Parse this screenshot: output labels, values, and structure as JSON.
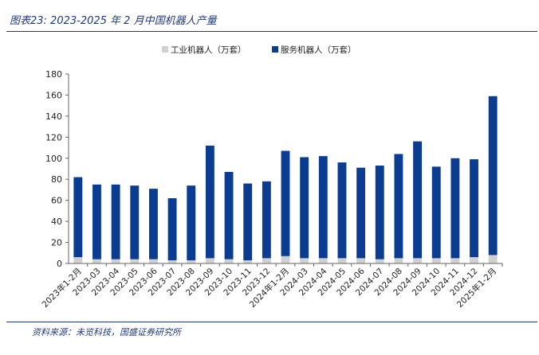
{
  "header": {
    "title": "图表23:  2023-2025 年 2 月中国机器人产量"
  },
  "footer": {
    "source": "资料来源：未览科技，国盛证券研究所"
  },
  "colors": {
    "industrial": "#d0d0d0",
    "service": "#0a3d91",
    "rule": "#1f3a7a"
  },
  "chart_data": {
    "type": "bar",
    "stacked": true,
    "categories": [
      "2023年1-2月",
      "2023-03",
      "2023-04",
      "2023-05",
      "2023-06",
      "2023-07",
      "2023-08",
      "2023-09",
      "2023-10",
      "2023-11",
      "2023-12",
      "2024年1-2月",
      "2024-03",
      "2024-04",
      "2024-05",
      "2024-06",
      "2024-07",
      "2024-08",
      "2024-09",
      "2024-10",
      "2024-11",
      "2024-12",
      "2025年1-2月"
    ],
    "series": [
      {
        "name": "工业机器人（万套）",
        "values": [
          6,
          4,
          4,
          4,
          4,
          3,
          3,
          5,
          4,
          3,
          5,
          7,
          5,
          5,
          5,
          5,
          4,
          5,
          5,
          5,
          5,
          6,
          8
        ]
      },
      {
        "name": "服务机器人（万套）",
        "values": [
          76,
          71,
          71,
          70,
          67,
          59,
          71,
          107,
          83,
          73,
          73,
          100,
          96,
          97,
          91,
          86,
          89,
          99,
          111,
          87,
          95,
          93,
          151
        ]
      }
    ],
    "yticks": [
      0,
      20,
      40,
      60,
      80,
      100,
      120,
      140,
      160,
      180
    ],
    "ylim": [
      0,
      180
    ],
    "grid": false,
    "legend": "top-center"
  }
}
